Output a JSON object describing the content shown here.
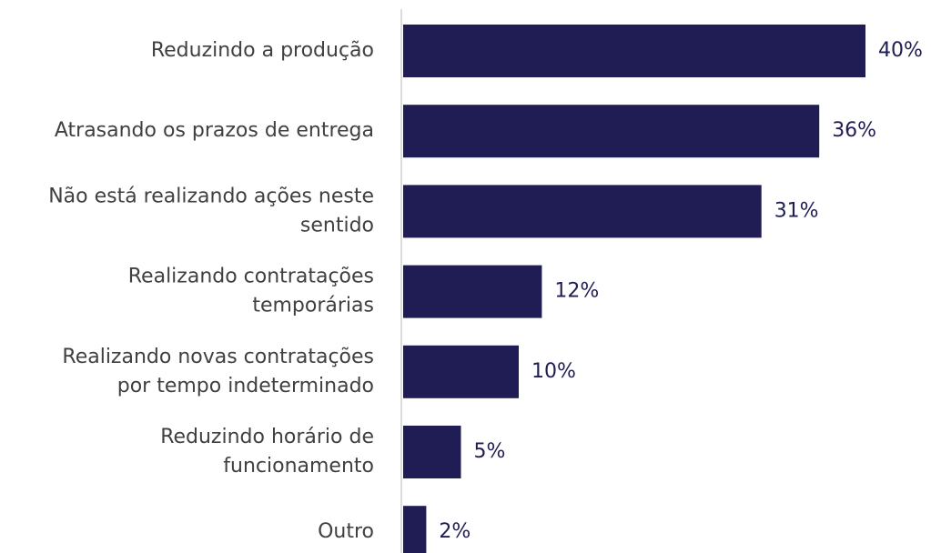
{
  "chart_data": {
    "type": "bar",
    "orientation": "horizontal",
    "categories": [
      [
        "Reduzindo a produção"
      ],
      [
        "Atrasando os prazos de entrega"
      ],
      [
        "Não está realizando ações neste",
        "sentido"
      ],
      [
        "Realizando contratações",
        "temporárias"
      ],
      [
        "Realizando novas contratações",
        "por tempo indeterminado"
      ],
      [
        "Reduzindo horário de",
        "funcionamento"
      ],
      [
        "Outro"
      ]
    ],
    "values": [
      40,
      36,
      31,
      12,
      10,
      5,
      2
    ],
    "value_labels": [
      "40%",
      "36%",
      "31%",
      "12%",
      "10%",
      "5%",
      "2%"
    ],
    "color": "#1f1d54",
    "xlim": [
      0,
      40
    ]
  }
}
